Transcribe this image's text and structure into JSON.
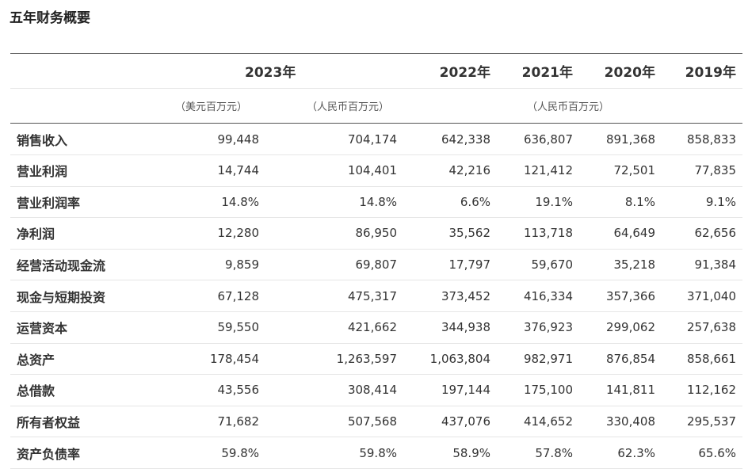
{
  "title": "五年财务概要",
  "header": {
    "years": [
      "2023年",
      "2022年",
      "2021年",
      "2020年",
      "2019年"
    ],
    "units": [
      "（美元百万元）",
      "（人民币百万元）",
      "（人民币百万元）"
    ]
  },
  "rows": [
    {
      "label": "销售收入",
      "values": [
        "99,448",
        "704,174",
        "642,338",
        "636,807",
        "891,368",
        "858,833"
      ]
    },
    {
      "label": "营业利润",
      "values": [
        "14,744",
        "104,401",
        "42,216",
        "121,412",
        "72,501",
        "77,835"
      ]
    },
    {
      "label": "营业利润率",
      "values": [
        "14.8%",
        "14.8%",
        "6.6%",
        "19.1%",
        "8.1%",
        "9.1%"
      ]
    },
    {
      "label": "净利润",
      "values": [
        "12,280",
        "86,950",
        "35,562",
        "113,718",
        "64,649",
        "62,656"
      ]
    },
    {
      "label": "经营活动现金流",
      "values": [
        "9,859",
        "69,807",
        "17,797",
        "59,670",
        "35,218",
        "91,384"
      ]
    },
    {
      "label": "现金与短期投资",
      "values": [
        "67,128",
        "475,317",
        "373,452",
        "416,334",
        "357,366",
        "371,040"
      ]
    },
    {
      "label": "运营资本",
      "values": [
        "59,550",
        "421,662",
        "344,938",
        "376,923",
        "299,062",
        "257,638"
      ]
    },
    {
      "label": "总资产",
      "values": [
        "178,454",
        "1,263,597",
        "1,063,804",
        "982,971",
        "876,854",
        "858,661"
      ]
    },
    {
      "label": "总借款",
      "values": [
        "43,556",
        "308,414",
        "197,144",
        "175,100",
        "141,811",
        "112,162"
      ]
    },
    {
      "label": "所有者权益",
      "values": [
        "71,682",
        "507,568",
        "437,076",
        "414,652",
        "330,408",
        "295,537"
      ]
    },
    {
      "label": "资产负债率",
      "values": [
        "59.8%",
        "59.8%",
        "58.9%",
        "57.8%",
        "62.3%",
        "65.6%"
      ]
    }
  ]
}
